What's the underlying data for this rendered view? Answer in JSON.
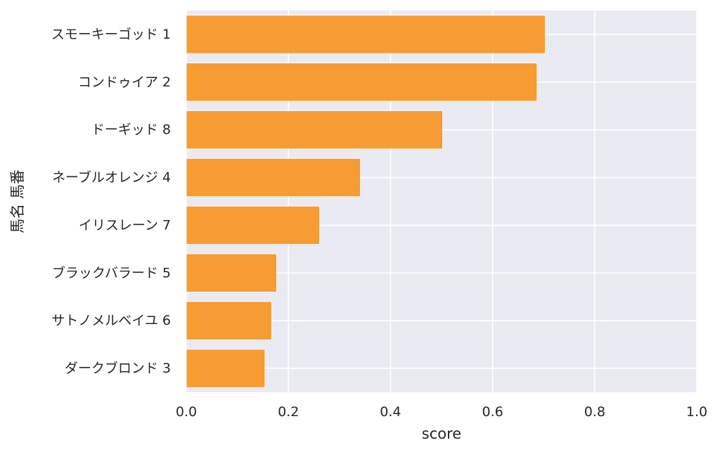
{
  "chart_data": {
    "type": "bar",
    "orientation": "horizontal",
    "title": "",
    "xlabel": "score",
    "ylabel": "馬名 馬番",
    "xlim": [
      0,
      1.0
    ],
    "xticks": [
      "0.0",
      "0.2",
      "0.4",
      "0.6",
      "0.8",
      "1.0"
    ],
    "grid": true,
    "categories": [
      "スモーキーゴッド 1",
      "コンドゥイア 2",
      "ドーギッド 8",
      "ネーブルオレンジ 4",
      "イリスレーン 7",
      "ブラックバラード 5",
      "サトノメルベイユ 6",
      "ダークブロンド 3"
    ],
    "values": [
      0.703,
      0.687,
      0.502,
      0.341,
      0.261,
      0.177,
      0.167,
      0.154
    ],
    "colors": {
      "bar": "#f7931e",
      "background": "#eaeaf2",
      "grid": "#ffffff",
      "text": "#262626"
    }
  }
}
